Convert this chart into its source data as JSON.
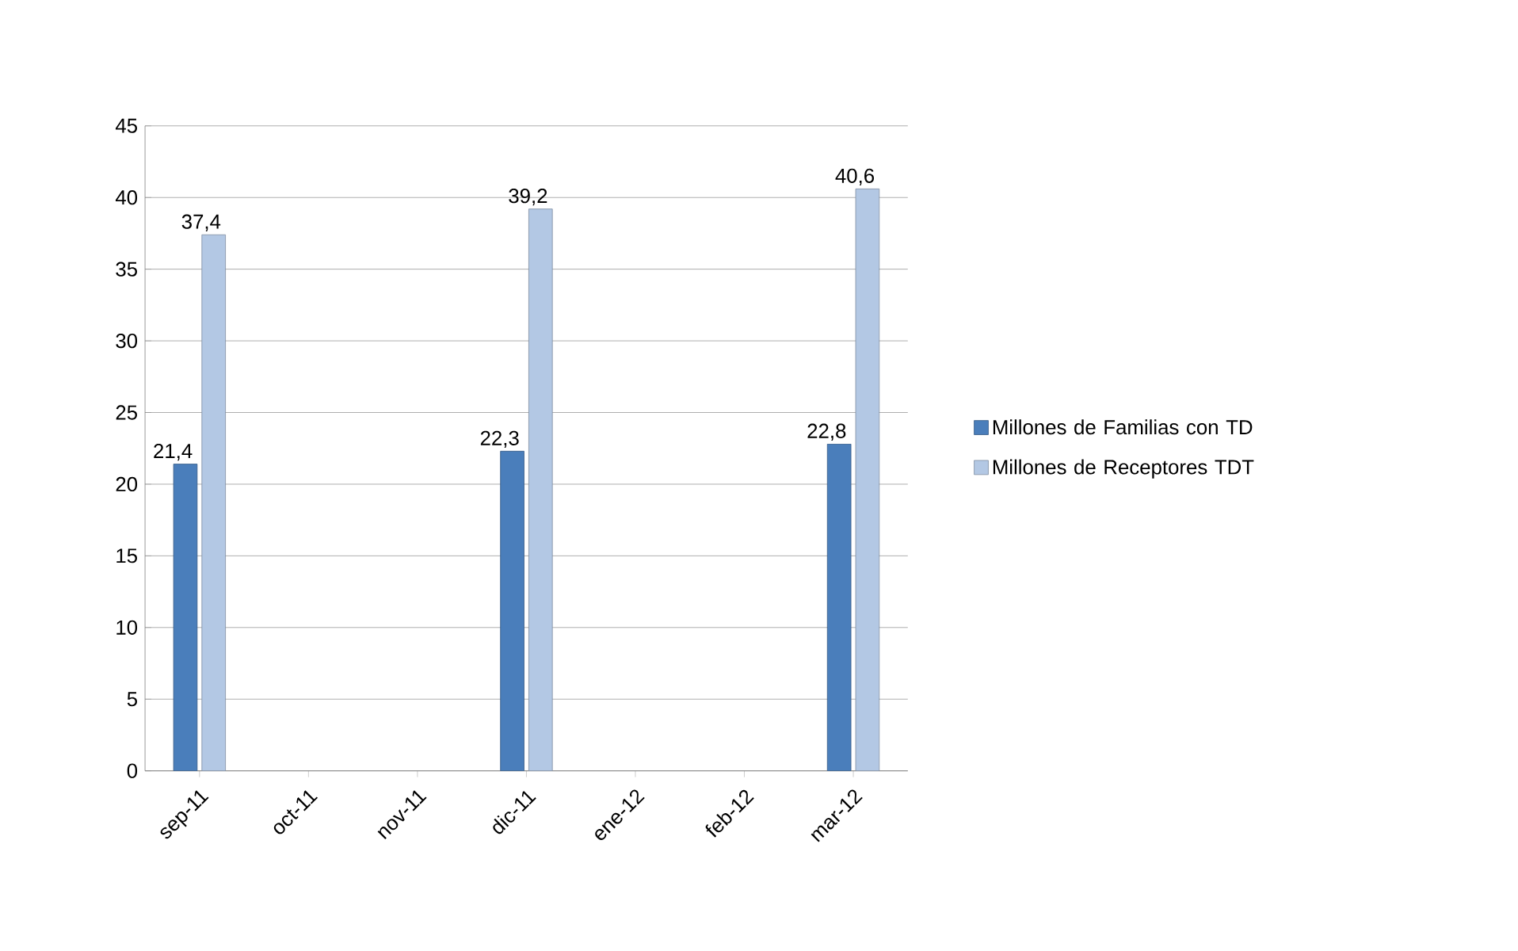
{
  "chart_data": {
    "type": "bar",
    "categories": [
      "sep-11",
      "oct-11",
      "nov-11",
      "dic-11",
      "ene-12",
      "feb-12",
      "mar-12"
    ],
    "series": [
      {
        "name": "Millones de Familias con TD",
        "color": "#4a7ebb",
        "values": [
          21.4,
          null,
          null,
          22.3,
          null,
          null,
          22.8
        ],
        "value_labels": [
          "21,4",
          null,
          null,
          "22,3",
          null,
          null,
          "22,8"
        ]
      },
      {
        "name": "Millones de Receptores TDT",
        "color": "#b3c8e4",
        "values": [
          37.4,
          null,
          null,
          39.2,
          null,
          null,
          40.6
        ],
        "value_labels": [
          "37,4",
          null,
          null,
          "39,2",
          null,
          null,
          "40,6"
        ]
      }
    ],
    "ylim": [
      0,
      45
    ],
    "yticks": [
      0,
      5,
      10,
      15,
      20,
      25,
      30,
      35,
      40,
      45
    ],
    "grid": "y",
    "legend": "right"
  }
}
